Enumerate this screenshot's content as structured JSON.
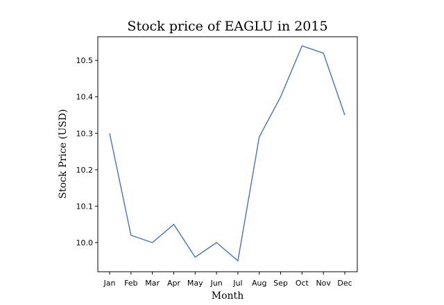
{
  "chart_data": {
    "type": "line",
    "title": "Stock price of EAGLU in 2015",
    "xlabel": "Month",
    "ylabel": "Stock Price (USD)",
    "categories": [
      "Jan",
      "Feb",
      "Mar",
      "Apr",
      "May",
      "Jun",
      "Jul",
      "Aug",
      "Sep",
      "Oct",
      "Nov",
      "Dec"
    ],
    "series": [
      {
        "values": [
          10.3,
          10.02,
          10.0,
          10.05,
          9.96,
          10.0,
          9.95,
          10.29,
          10.4,
          10.54,
          10.52,
          10.35
        ]
      }
    ],
    "ylim": [
      9.92,
      10.565
    ],
    "yticks": [
      "10.0",
      "10.1",
      "10.2",
      "10.3",
      "10.4",
      "10.5"
    ],
    "grid": false,
    "colors": {
      "line": "#4472c4"
    }
  }
}
